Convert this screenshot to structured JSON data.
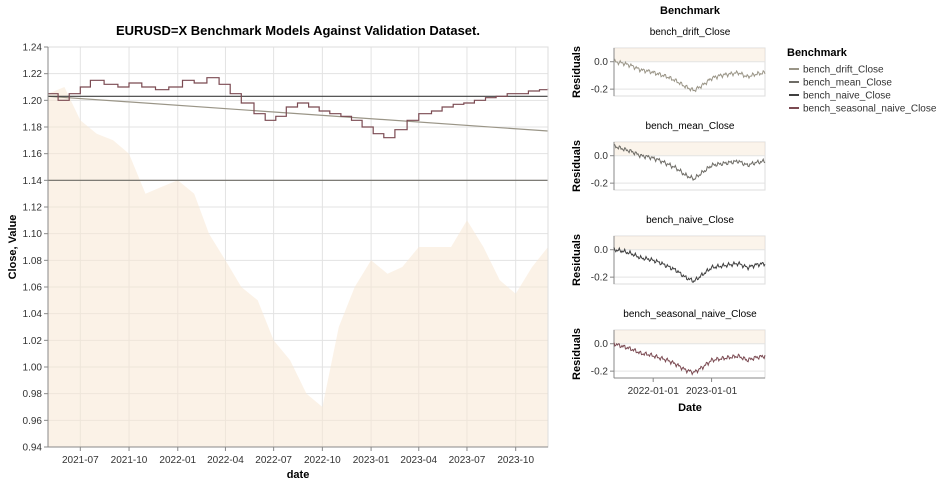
{
  "chart_data": [
    {
      "type": "line",
      "title": "EURUSD=X Benchmark Models Against Validation Dataset.",
      "xlabel": "date",
      "ylabel": "Close, Value",
      "x_tick_labels": [
        "2021-07",
        "2021-10",
        "2022-01",
        "2022-04",
        "2022-07",
        "2022-10",
        "2023-01",
        "2023-04",
        "2023-07",
        "2023-10"
      ],
      "ylim": [
        0.94,
        1.24
      ],
      "y_ticks": [
        "0.94",
        "0.96",
        "0.98",
        "1.00",
        "1.02",
        "1.04",
        "1.06",
        "1.08",
        "1.10",
        "1.12",
        "1.14",
        "1.16",
        "1.18",
        "1.20",
        "1.22",
        "1.24"
      ],
      "actual_close_area": {
        "name": "Close",
        "color": "#f7e7d3",
        "x": [
          "2021-05-01",
          "2021-06-01",
          "2021-07-01",
          "2021-08-01",
          "2021-09-01",
          "2021-10-01",
          "2021-11-01",
          "2021-12-01",
          "2022-01-01",
          "2022-02-01",
          "2022-03-01",
          "2022-04-01",
          "2022-05-01",
          "2022-06-01",
          "2022-07-01",
          "2022-08-01",
          "2022-09-01",
          "2022-10-01",
          "2022-11-01",
          "2022-12-01",
          "2023-01-01",
          "2023-02-01",
          "2023-03-01",
          "2023-04-01",
          "2023-05-01",
          "2023-06-01",
          "2023-07-01",
          "2023-08-01",
          "2023-09-01",
          "2023-10-01",
          "2023-11-01",
          "2023-12-01"
        ],
        "values": [
          1.205,
          1.21,
          1.185,
          1.175,
          1.17,
          1.16,
          1.13,
          1.135,
          1.14,
          1.13,
          1.1,
          1.08,
          1.06,
          1.05,
          1.02,
          1.005,
          0.98,
          0.97,
          1.03,
          1.06,
          1.08,
          1.07,
          1.075,
          1.09,
          1.09,
          1.09,
          1.11,
          1.09,
          1.065,
          1.055,
          1.075,
          1.09
        ]
      },
      "series": [
        {
          "name": "bench_drift_Close",
          "color": "#9a9587",
          "x": [
            "2021-05-01",
            "2023-12-01"
          ],
          "values": [
            1.203,
            1.177
          ]
        },
        {
          "name": "bench_mean_Close",
          "color": "#6e6c66",
          "x": [
            "2021-05-01",
            "2023-12-01"
          ],
          "values": [
            1.14,
            1.14
          ]
        },
        {
          "name": "bench_naive_Close",
          "color": "#3f3f3f",
          "x": [
            "2021-05-01",
            "2023-12-01"
          ],
          "values": [
            1.203,
            1.203
          ]
        },
        {
          "name": "bench_seasonal_naive_Close",
          "color": "#7b4a52",
          "x": [
            "2021-05-01",
            "2021-05-20",
            "2021-06-10",
            "2021-07-01",
            "2021-07-20",
            "2021-08-15",
            "2021-09-10",
            "2021-10-01",
            "2021-10-25",
            "2021-11-20",
            "2021-12-15",
            "2022-01-10",
            "2022-02-01",
            "2022-02-25",
            "2022-03-20",
            "2022-04-10",
            "2022-05-01",
            "2022-05-25",
            "2022-06-15",
            "2022-07-05",
            "2022-07-25",
            "2022-08-15",
            "2022-09-05",
            "2022-09-25",
            "2022-10-15",
            "2022-11-05",
            "2022-11-25",
            "2022-12-15",
            "2023-01-05",
            "2023-01-25",
            "2023-02-15",
            "2023-03-10",
            "2023-04-01",
            "2023-04-25",
            "2023-05-15",
            "2023-06-05",
            "2023-06-25",
            "2023-07-15",
            "2023-08-05",
            "2023-08-25",
            "2023-09-15",
            "2023-10-05",
            "2023-10-25",
            "2023-11-15",
            "2023-12-01"
          ],
          "values": [
            1.205,
            1.2,
            1.205,
            1.21,
            1.215,
            1.212,
            1.21,
            1.213,
            1.21,
            1.208,
            1.21,
            1.215,
            1.213,
            1.217,
            1.212,
            1.205,
            1.198,
            1.19,
            1.185,
            1.188,
            1.195,
            1.198,
            1.195,
            1.192,
            1.19,
            1.188,
            1.185,
            1.18,
            1.175,
            1.172,
            1.178,
            1.185,
            1.19,
            1.192,
            1.195,
            1.197,
            1.198,
            1.2,
            1.202,
            1.203,
            1.205,
            1.205,
            1.207,
            1.208,
            1.209
          ]
        }
      ]
    },
    {
      "type": "line",
      "title": "Benchmark",
      "xlabel": "Date",
      "ylabel": "Residuals",
      "x_tick_labels": [
        "2022-01-01",
        "2023-01-01"
      ],
      "y_ticks": [
        "0.0",
        "-0.2"
      ],
      "ylim": [
        -0.25,
        0.1
      ],
      "panels": [
        {
          "name": "bench_drift_Close",
          "color": "#9a9587",
          "x": [
            "2021-05-01",
            "2021-07-01",
            "2021-09-01",
            "2021-11-01",
            "2022-01-01",
            "2022-03-01",
            "2022-05-01",
            "2022-07-01",
            "2022-09-01",
            "2022-10-01",
            "2022-11-01",
            "2023-01-01",
            "2023-03-01",
            "2023-05-01",
            "2023-07-01",
            "2023-09-01",
            "2023-11-01",
            "2023-12-01"
          ],
          "values": [
            0.0,
            -0.01,
            -0.03,
            -0.06,
            -0.07,
            -0.09,
            -0.11,
            -0.14,
            -0.18,
            -0.21,
            -0.17,
            -0.12,
            -0.1,
            -0.09,
            -0.08,
            -0.11,
            -0.09,
            -0.08
          ]
        },
        {
          "name": "bench_mean_Close",
          "color": "#6e6c66",
          "x": [
            "2021-05-01",
            "2021-07-01",
            "2021-09-01",
            "2021-11-01",
            "2022-01-01",
            "2022-03-01",
            "2022-05-01",
            "2022-07-01",
            "2022-09-01",
            "2022-10-01",
            "2022-11-01",
            "2023-01-01",
            "2023-03-01",
            "2023-05-01",
            "2023-07-01",
            "2023-09-01",
            "2023-11-01",
            "2023-12-01"
          ],
          "values": [
            0.07,
            0.05,
            0.03,
            0.0,
            -0.01,
            -0.03,
            -0.06,
            -0.09,
            -0.14,
            -0.17,
            -0.12,
            -0.07,
            -0.06,
            -0.05,
            -0.04,
            -0.07,
            -0.05,
            -0.04
          ]
        },
        {
          "name": "bench_naive_Close",
          "color": "#3f3f3f",
          "x": [
            "2021-05-01",
            "2021-07-01",
            "2021-09-01",
            "2021-11-01",
            "2022-01-01",
            "2022-03-01",
            "2022-05-01",
            "2022-07-01",
            "2022-09-01",
            "2022-10-01",
            "2022-11-01",
            "2023-01-01",
            "2023-03-01",
            "2023-05-01",
            "2023-07-01",
            "2023-09-01",
            "2023-11-01",
            "2023-12-01"
          ],
          "values": [
            0.0,
            -0.01,
            -0.03,
            -0.06,
            -0.07,
            -0.09,
            -0.12,
            -0.15,
            -0.2,
            -0.23,
            -0.18,
            -0.13,
            -0.12,
            -0.11,
            -0.1,
            -0.13,
            -0.11,
            -0.1
          ]
        },
        {
          "name": "bench_seasonal_naive_Close",
          "color": "#7b4a52",
          "x": [
            "2021-05-01",
            "2021-07-01",
            "2021-09-01",
            "2021-11-01",
            "2022-01-01",
            "2022-03-01",
            "2022-05-01",
            "2022-07-01",
            "2022-09-01",
            "2022-10-01",
            "2022-11-01",
            "2023-01-01",
            "2023-03-01",
            "2023-05-01",
            "2023-07-01",
            "2023-09-01",
            "2023-11-01",
            "2023-12-01"
          ],
          "values": [
            0.0,
            -0.02,
            -0.04,
            -0.07,
            -0.08,
            -0.1,
            -0.12,
            -0.15,
            -0.19,
            -0.21,
            -0.17,
            -0.12,
            -0.11,
            -0.1,
            -0.09,
            -0.12,
            -0.1,
            -0.09
          ]
        }
      ],
      "legend": {
        "title": "Benchmark",
        "position": "right",
        "entries": [
          "bench_drift_Close",
          "bench_mean_Close",
          "bench_naive_Close",
          "bench_seasonal_naive_Close"
        ]
      }
    }
  ]
}
